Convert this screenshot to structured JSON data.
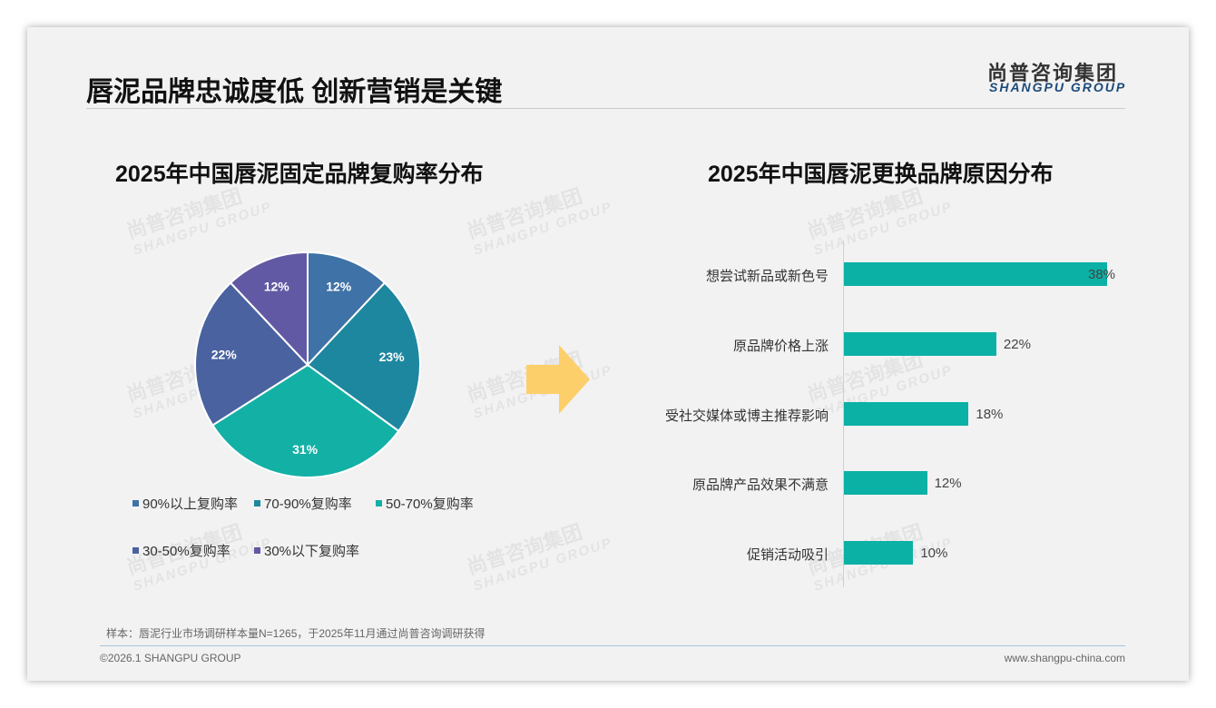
{
  "header": {
    "title": "唇泥品牌忠诚度低 创新营销是关键",
    "logo_cn": "尚普咨询集团",
    "logo_en": "SHANGPU GROUP"
  },
  "watermark": {
    "cn": "尚普咨询集团",
    "en": "SHANGPU GROUP"
  },
  "chart_data": [
    {
      "type": "pie",
      "title": "2025年中国唇泥固定品牌复购率分布",
      "categories": [
        "90%以上复购率",
        "70-90%复购率",
        "50-70%复购率",
        "30-50%复购率",
        "30%以下复购率"
      ],
      "values": [
        12,
        23,
        31,
        22,
        12
      ],
      "labels": [
        "12%",
        "23%",
        "31%",
        "22%",
        "12%"
      ],
      "colors": [
        "#3f72a6",
        "#1e87a0",
        "#13b0a5",
        "#4a63a0",
        "#6259a4"
      ],
      "legend": "bottom"
    },
    {
      "type": "bar",
      "orientation": "horizontal",
      "title": "2025年中国唇泥更换品牌原因分布",
      "categories": [
        "想尝试新品或新色号",
        "原品牌价格上涨",
        "受社交媒体或博主推荐影响",
        "原品牌产品效果不满意",
        "促销活动吸引"
      ],
      "values": [
        38,
        22,
        18,
        12,
        10
      ],
      "labels": [
        "38%",
        "22%",
        "18%",
        "12%",
        "10%"
      ],
      "color": "#0bb1a5"
    }
  ],
  "footer": {
    "note": "样本：唇泥行业市场调研样本量N=1265，于2025年11月通过尚普咨询调研获得",
    "copyright": "©2026.1 SHANGPU GROUP",
    "url": "www.shangpu-china.com"
  }
}
